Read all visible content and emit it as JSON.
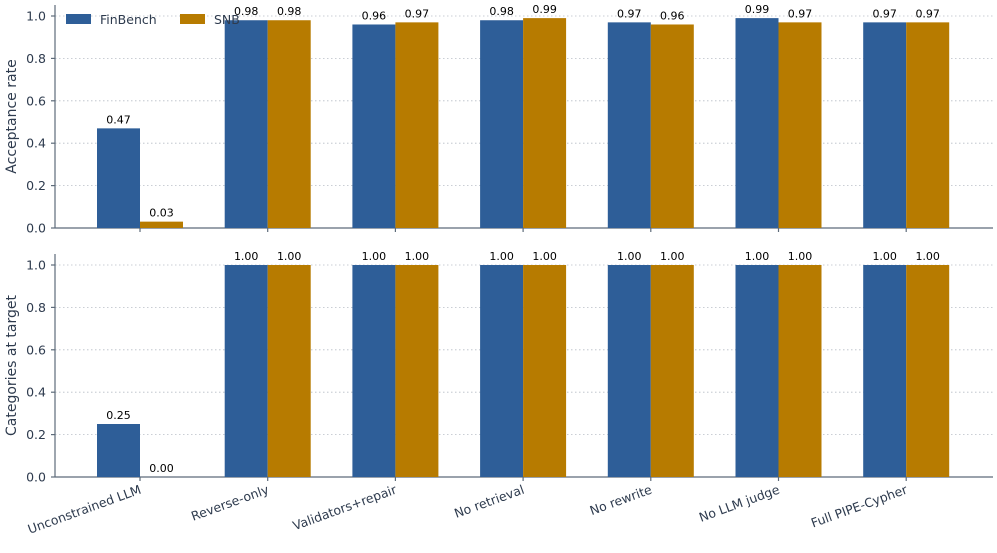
{
  "chart_data": {
    "type": "bar",
    "categories": [
      "Unconstrained LLM",
      "Reverse-only",
      "Validators+repair",
      "No retrieval",
      "No rewrite",
      "No LLM judge",
      "Full PIPE-Cypher"
    ],
    "legend": [
      "FinBench",
      "SNB"
    ],
    "legend_placement": "top-left",
    "colors": {
      "FinBench": "#2e5e98",
      "SNB": "#b77b00"
    },
    "grid": "horizontal dotted",
    "panels": [
      {
        "ylabel": "Acceptance rate",
        "ylim": [
          0,
          1.0
        ],
        "yticks": [
          "0.0",
          "0.2",
          "0.4",
          "0.6",
          "0.8",
          "1.0"
        ],
        "series": [
          {
            "name": "FinBench",
            "values": [
              0.47,
              0.98,
              0.96,
              0.98,
              0.97,
              0.99,
              0.97
            ],
            "labels": [
              "0.47",
              "0.98",
              "0.96",
              "0.98",
              "0.97",
              "0.99",
              "0.97"
            ]
          },
          {
            "name": "SNB",
            "values": [
              0.03,
              0.98,
              0.97,
              0.99,
              0.96,
              0.97,
              0.97
            ],
            "labels": [
              "0.03",
              "0.98",
              "0.97",
              "0.99",
              "0.96",
              "0.97",
              "0.97"
            ]
          }
        ]
      },
      {
        "ylabel": "Categories at target",
        "ylim": [
          0,
          1.0
        ],
        "yticks": [
          "0.0",
          "0.2",
          "0.4",
          "0.6",
          "0.8",
          "1.0"
        ],
        "series": [
          {
            "name": "FinBench",
            "values": [
              0.25,
              1.0,
              1.0,
              1.0,
              1.0,
              1.0,
              1.0
            ],
            "labels": [
              "0.25",
              "1.00",
              "1.00",
              "1.00",
              "1.00",
              "1.00",
              "1.00"
            ]
          },
          {
            "name": "SNB",
            "values": [
              0.0,
              1.0,
              1.0,
              1.0,
              1.0,
              1.0,
              1.0
            ],
            "labels": [
              "0.00",
              "1.00",
              "1.00",
              "1.00",
              "1.00",
              "1.00",
              "1.00"
            ]
          }
        ]
      }
    ]
  }
}
